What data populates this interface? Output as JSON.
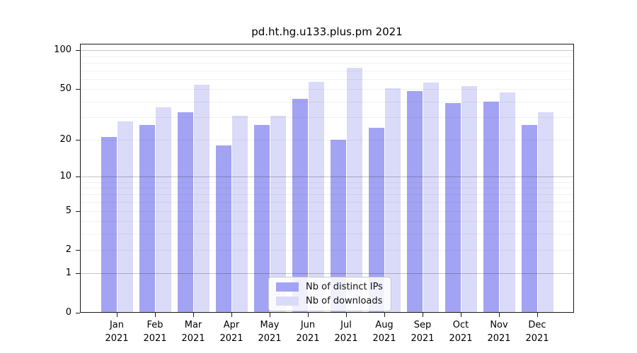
{
  "chart_data": {
    "type": "bar",
    "title": "pd.ht.hg.u133.plus.pm 2021",
    "categories": [
      "Jan",
      "Feb",
      "Mar",
      "Apr",
      "May",
      "Jun",
      "Jul",
      "Aug",
      "Sep",
      "Oct",
      "Nov",
      "Dec"
    ],
    "x_tick_second_line": "2021",
    "series": [
      {
        "name": "Nb of distinct IPs",
        "color": "#a3a3f4",
        "values": [
          21,
          26,
          33,
          18,
          26,
          42,
          20,
          25,
          48,
          39,
          40,
          26
        ]
      },
      {
        "name": "Nb of downloads",
        "color": "#dadaf9",
        "values": [
          28,
          36,
          54,
          31,
          31,
          57,
          73,
          51,
          56,
          53,
          47,
          33
        ]
      }
    ],
    "y_scale": "log1p",
    "y_ticks": [
      0,
      1,
      2,
      5,
      10,
      20,
      50,
      100
    ],
    "ylim": [
      0,
      113
    ],
    "grid": true,
    "legend_position": "lower-center",
    "colors": {
      "axis": "#1a1a1a",
      "major_grid": "#bcbcbc",
      "minor_grid": "#ededed",
      "legend_border": "#c9c9c9",
      "text": "#000000"
    }
  }
}
